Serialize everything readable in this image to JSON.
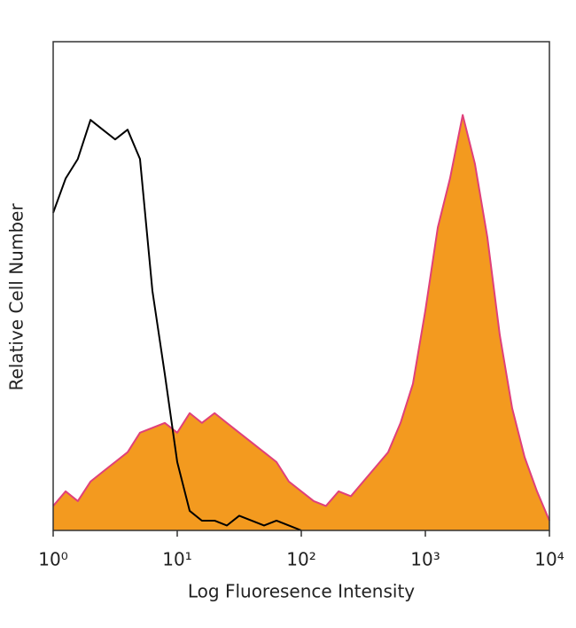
{
  "chart_data": {
    "type": "area",
    "xscale": "log",
    "x_label": "Log Fluoresence Intensity",
    "y_label": "Relative Cell Number",
    "x": [
      1,
      1.26,
      1.58,
      2,
      2.51,
      3.16,
      3.98,
      5.01,
      6.31,
      7.94,
      10,
      12.6,
      15.8,
      20,
      25.1,
      31.6,
      39.8,
      50.1,
      63.1,
      79.4,
      100,
      126,
      158,
      200,
      251,
      316,
      398,
      501,
      631,
      794,
      1000,
      1260,
      1580,
      2000,
      2510,
      3160,
      3980,
      5010,
      6310,
      7940,
      10000
    ],
    "series": [
      {
        "color": "#e0407a",
        "fill": "#f39a1f",
        "values": [
          5,
          8,
          6,
          10,
          12,
          14,
          16,
          20,
          21,
          22,
          20,
          24,
          22,
          24,
          22,
          20,
          18,
          16,
          14,
          10,
          8,
          6,
          5,
          8,
          7,
          10,
          13,
          16,
          22,
          30,
          45,
          62,
          72,
          85,
          75,
          60,
          40,
          25,
          15,
          8,
          2
        ]
      },
      {
        "color": "#000000",
        "values": [
          65,
          72,
          76,
          84,
          82,
          80,
          82,
          76,
          49,
          32,
          14,
          4,
          2,
          2,
          1,
          3,
          2,
          1,
          2,
          1,
          0,
          null,
          null,
          null,
          null,
          null,
          null,
          null,
          null,
          null,
          null,
          null,
          null,
          null,
          null,
          null,
          null,
          null,
          null,
          null,
          null
        ]
      }
    ],
    "xlim": [
      1,
      10000
    ],
    "ylim": [
      0,
      100
    ],
    "xticks": [
      {
        "value": 1,
        "label": "10⁰"
      },
      {
        "value": 10,
        "label": "10¹"
      },
      {
        "value": 100,
        "label": "10²"
      },
      {
        "value": 1000,
        "label": "10³"
      },
      {
        "value": 10000,
        "label": "10⁴"
      }
    ]
  }
}
